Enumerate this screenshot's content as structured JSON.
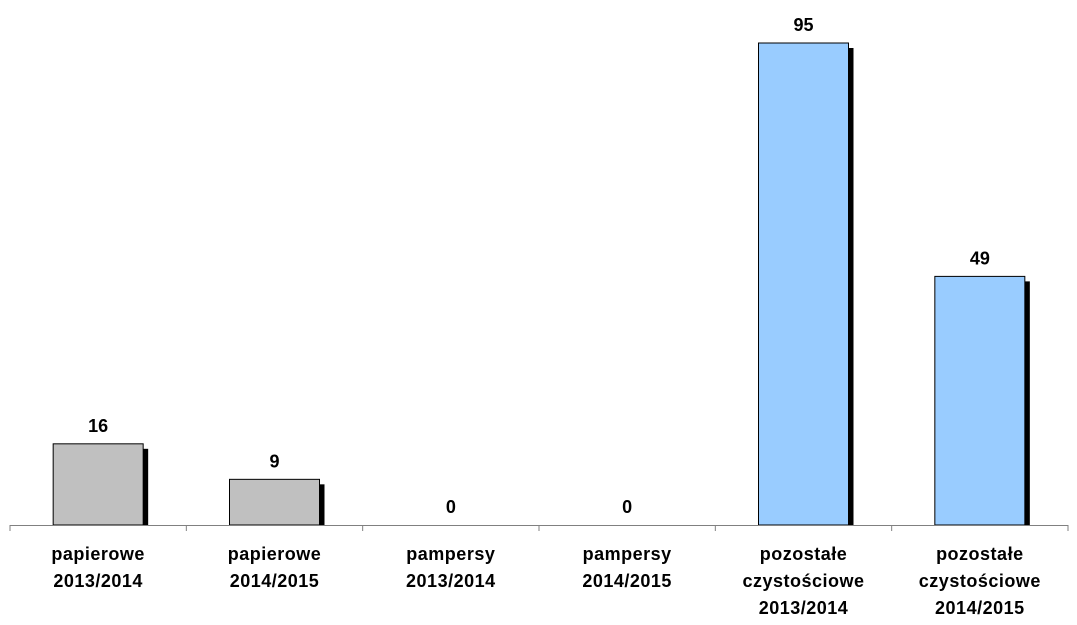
{
  "chart_data": {
    "type": "bar",
    "title": "",
    "xlabel": "",
    "ylabel": "",
    "ylim": [
      0,
      100
    ],
    "grid": false,
    "legend": "none",
    "categories": [
      [
        "papierowe",
        "2013/2014"
      ],
      [
        "papierowe",
        "2014/2015"
      ],
      [
        "pampersy",
        "2013/2014"
      ],
      [
        "pampersy",
        "2014/2015"
      ],
      [
        "pozostałe",
        "czystościowe",
        "2013/2014"
      ],
      [
        "pozostałe",
        "czystościowe",
        "2014/2015"
      ]
    ],
    "values": [
      16,
      9,
      0,
      0,
      95,
      49
    ],
    "data_labels": [
      "16",
      "9",
      "0",
      "0",
      "95",
      "49"
    ],
    "bar_colors": [
      "#c0c0c0",
      "#c0c0c0",
      "#c0c0c0",
      "#c0c0c0",
      "#99ccff",
      "#99ccff"
    ],
    "shadow_color": "#000000",
    "axis_color": "#808080"
  }
}
